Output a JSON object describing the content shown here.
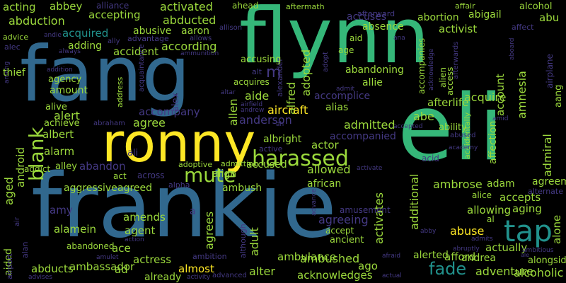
{
  "palette": {
    "yellow": "#fde725",
    "lime": "#9bd93c",
    "green": "#35b779",
    "teal": "#21918c",
    "blue": "#31688e",
    "indigo": "#443983",
    "purple": "#440154"
  },
  "words": [
    {
      "text": "flynn",
      "color": "green"
    },
    {
      "text": "fang",
      "color": "blue"
    },
    {
      "text": "frankie",
      "color": "blue"
    },
    {
      "text": "eli",
      "color": "green"
    },
    {
      "text": "ronny",
      "color": "yellow"
    },
    {
      "text": "harassed",
      "color": "lime"
    },
    {
      "text": "tap",
      "color": "teal"
    },
    {
      "text": "blank",
      "color": "lime"
    },
    {
      "text": "mute",
      "color": "lime"
    },
    {
      "text": "fade",
      "color": "teal"
    },
    {
      "text": "acting",
      "color": "lime"
    },
    {
      "text": "abbey",
      "color": "lime"
    },
    {
      "text": "alliance",
      "color": "indigo"
    },
    {
      "text": "activated",
      "color": "lime"
    },
    {
      "text": "ahead",
      "color": "lime"
    },
    {
      "text": "aftermath",
      "color": "lime"
    },
    {
      "text": "affair",
      "color": "lime"
    },
    {
      "text": "alcohol",
      "color": "lime"
    },
    {
      "text": "abduction",
      "color": "lime"
    },
    {
      "text": "accepting",
      "color": "lime"
    },
    {
      "text": "abducted",
      "color": "lime"
    },
    {
      "text": "accuses",
      "color": "indigo"
    },
    {
      "text": "afterward",
      "color": "indigo"
    },
    {
      "text": "abortion",
      "color": "lime"
    },
    {
      "text": "abigail",
      "color": "lime"
    },
    {
      "text": "abu",
      "color": "lime"
    },
    {
      "text": "advice",
      "color": "lime"
    },
    {
      "text": "andie",
      "color": "indigo"
    },
    {
      "text": "abusive",
      "color": "lime"
    },
    {
      "text": "aaron",
      "color": "lime"
    },
    {
      "text": "allison",
      "color": "indigo"
    },
    {
      "text": "absence",
      "color": "lime"
    },
    {
      "text": "activist",
      "color": "lime"
    },
    {
      "text": "affect",
      "color": "indigo"
    },
    {
      "text": "acquired",
      "color": "teal"
    },
    {
      "text": "advantage",
      "color": "indigo"
    },
    {
      "text": "allows",
      "color": "indigo"
    },
    {
      "text": "aid",
      "color": "lime"
    },
    {
      "text": "ana",
      "color": "indigo"
    },
    {
      "text": "alec",
      "color": "indigo"
    },
    {
      "text": "adding",
      "color": "lime"
    },
    {
      "text": "according",
      "color": "lime"
    },
    {
      "text": "ammunition",
      "color": "indigo"
    },
    {
      "text": "age",
      "color": "lime"
    },
    {
      "text": "always",
      "color": "indigo"
    },
    {
      "text": "accident",
      "color": "lime"
    },
    {
      "text": "afterwards",
      "color": "indigo"
    },
    {
      "text": "airplane",
      "color": "indigo"
    },
    {
      "text": "alexander",
      "color": "indigo"
    },
    {
      "text": "adopted",
      "color": "lime"
    },
    {
      "text": "alfred",
      "color": "lime"
    },
    {
      "text": "adopt",
      "color": "lime"
    },
    {
      "text": "aged",
      "color": "lime"
    },
    {
      "text": "android",
      "color": "indigo"
    },
    {
      "text": "aided",
      "color": "lime"
    },
    {
      "text": "air",
      "color": "lime"
    },
    {
      "text": "airport",
      "color": "indigo"
    },
    {
      "text": "alan",
      "color": "lime"
    },
    {
      "text": "alex",
      "color": "lime"
    },
    {
      "text": "address",
      "color": "lime"
    },
    {
      "text": "acquaintance",
      "color": "lime"
    },
    {
      "text": "affection",
      "color": "indigo"
    },
    {
      "text": "amnesia",
      "color": "indigo"
    },
    {
      "text": "admiral",
      "color": "lime"
    },
    {
      "text": "account",
      "color": "lime"
    },
    {
      "text": "aang",
      "color": "lime"
    },
    {
      "text": "aboard",
      "color": "yellow"
    },
    {
      "text": "acknowledge",
      "color": "lime"
    },
    {
      "text": "alien",
      "color": "lime"
    },
    {
      "text": "accompanies",
      "color": "lime"
    },
    {
      "text": "access",
      "color": "indigo"
    },
    {
      "text": "accidentally",
      "color": "indigo"
    },
    {
      "text": "activates",
      "color": "lime"
    },
    {
      "text": "additional",
      "color": "lime"
    },
    {
      "text": "agrees",
      "color": "lime"
    },
    {
      "text": "although",
      "color": "indigo"
    },
    {
      "text": "adult",
      "color": "lime"
    },
    {
      "text": "advance",
      "color": "lime"
    },
    {
      "text": "alone",
      "color": "indigo"
    },
    {
      "text": "allen",
      "color": "lime"
    },
    {
      "text": "among",
      "color": "indigo"
    },
    {
      "text": "accusing",
      "color": "lime"
    },
    {
      "text": "abandoning",
      "color": "indigo"
    },
    {
      "text": "thief",
      "color": "lime"
    },
    {
      "text": "addition",
      "color": "lime"
    },
    {
      "text": "agency",
      "color": "indigo"
    },
    {
      "text": "amount",
      "color": "indigo"
    },
    {
      "text": "acquires",
      "color": "lime"
    },
    {
      "text": "allie",
      "color": "lime"
    },
    {
      "text": "aide",
      "color": "lime"
    },
    {
      "text": "accomplice",
      "color": "indigo"
    },
    {
      "text": "admit",
      "color": "lime"
    },
    {
      "text": "acquire",
      "color": "lime"
    },
    {
      "text": "afterlife",
      "color": "indigo"
    },
    {
      "text": "alias",
      "color": "lime"
    },
    {
      "text": "aircraft",
      "color": "indigo"
    },
    {
      "text": "alive",
      "color": "lime"
    },
    {
      "text": "alert",
      "color": "lime"
    },
    {
      "text": "accompany",
      "color": "lime"
    },
    {
      "text": "anderson",
      "color": "indigo"
    },
    {
      "text": "abe",
      "color": "lime"
    },
    {
      "text": "achieve",
      "color": "lime"
    },
    {
      "text": "abraham",
      "color": "lime"
    },
    {
      "text": "agree",
      "color": "indigo"
    },
    {
      "text": "admitted",
      "color": "lime"
    },
    {
      "text": "accepted",
      "color": "lime"
    },
    {
      "text": "ability",
      "color": "lime"
    },
    {
      "text": "abused",
      "color": "lime"
    },
    {
      "text": "albert",
      "color": "indigo"
    },
    {
      "text": "accompanied",
      "color": "lime"
    },
    {
      "text": "albright",
      "color": "indigo"
    },
    {
      "text": "actor",
      "color": "indigo"
    },
    {
      "text": "active",
      "color": "lime"
    },
    {
      "text": "academy",
      "color": "lime"
    },
    {
      "text": "alarm",
      "color": "indigo"
    },
    {
      "text": "addict",
      "color": "lime"
    },
    {
      "text": "alley",
      "color": "lime"
    },
    {
      "text": "abandon",
      "color": "lime"
    },
    {
      "text": "accused",
      "color": "lime"
    },
    {
      "text": "allowed",
      "color": "lime"
    },
    {
      "text": "acid",
      "color": "lime"
    },
    {
      "text": "act",
      "color": "lime"
    },
    {
      "text": "across",
      "color": "indigo"
    },
    {
      "text": "adoptive",
      "color": "lime"
    },
    {
      "text": "admitting",
      "color": "lime"
    },
    {
      "text": "align",
      "color": "lime"
    },
    {
      "text": "activate",
      "color": "yellow"
    },
    {
      "text": "agreement",
      "color": "indigo"
    },
    {
      "text": "aggressive",
      "color": "indigo"
    },
    {
      "text": "agreed",
      "color": "lime"
    },
    {
      "text": "alpha",
      "color": "indigo"
    },
    {
      "text": "ambush",
      "color": "indigo"
    },
    {
      "text": "african",
      "color": "lime"
    },
    {
      "text": "ambrose",
      "color": "indigo"
    },
    {
      "text": "adam",
      "color": "lime"
    },
    {
      "text": "alternate",
      "color": "indigo"
    },
    {
      "text": "alice",
      "color": "lime"
    },
    {
      "text": "accepts",
      "color": "lime"
    },
    {
      "text": "amy",
      "color": "indigo"
    },
    {
      "text": "amends",
      "color": "indigo"
    },
    {
      "text": "amusement",
      "color": "indigo"
    },
    {
      "text": "allowing",
      "color": "indigo"
    },
    {
      "text": "aging",
      "color": "lime"
    },
    {
      "text": "agreeing",
      "color": "indigo"
    },
    {
      "text": "al",
      "color": "lime"
    },
    {
      "text": "alamein",
      "color": "lime"
    },
    {
      "text": "agent",
      "color": "lime"
    },
    {
      "text": "abuse",
      "color": "lime"
    },
    {
      "text": "accept",
      "color": "lime"
    },
    {
      "text": "abby",
      "color": "lime"
    },
    {
      "text": "admits",
      "color": "lime"
    },
    {
      "text": "ancient",
      "color": "indigo"
    },
    {
      "text": "abandoned",
      "color": "yellow"
    },
    {
      "text": "action",
      "color": "lime"
    },
    {
      "text": "ace",
      "color": "lime"
    },
    {
      "text": "actually",
      "color": "lime"
    },
    {
      "text": "abruptly",
      "color": "lime"
    },
    {
      "text": "ambitious",
      "color": "indigo"
    },
    {
      "text": "ale",
      "color": "lime"
    },
    {
      "text": "ambition",
      "color": "indigo"
    },
    {
      "text": "afford",
      "color": "lime"
    },
    {
      "text": "andrea",
      "color": "indigo"
    },
    {
      "text": "alongside",
      "color": "indigo"
    },
    {
      "text": "abducts",
      "color": "lime"
    },
    {
      "text": "ambassador",
      "color": "indigo"
    },
    {
      "text": "ad",
      "color": "lime"
    },
    {
      "text": "actress",
      "color": "lime"
    },
    {
      "text": "amulet",
      "color": "indigo"
    },
    {
      "text": "almost",
      "color": "indigo"
    },
    {
      "text": "alter",
      "color": "indigo"
    },
    {
      "text": "ambulance",
      "color": "indigo"
    },
    {
      "text": "ambushed",
      "color": "indigo"
    },
    {
      "text": "ago",
      "color": "lime"
    },
    {
      "text": "afraid",
      "color": "lime"
    },
    {
      "text": "alerted",
      "color": "lime"
    },
    {
      "text": "advises",
      "color": "lime"
    },
    {
      "text": "already",
      "color": "indigo"
    },
    {
      "text": "activity",
      "color": "lime"
    },
    {
      "text": "advanced",
      "color": "lime"
    },
    {
      "text": "acknowledges",
      "color": "lime"
    },
    {
      "text": "actual",
      "color": "lime"
    },
    {
      "text": "adventure",
      "color": "lime"
    },
    {
      "text": "alcoholic",
      "color": "lime"
    },
    {
      "text": "altar",
      "color": "indigo"
    },
    {
      "text": "airfield",
      "color": "indigo"
    },
    {
      "text": "andrew",
      "color": "indigo"
    },
    {
      "text": "ah",
      "color": "lime"
    },
    {
      "text": "amid",
      "color": "indigo"
    },
    {
      "text": "ally",
      "color": "indigo"
    },
    {
      "text": "m",
      "color": "indigo"
    },
    {
      "text": "a",
      "color": "indigo"
    },
    {
      "text": "ali",
      "color": "indigo"
    },
    {
      "text": "alt",
      "color": "indigo"
    }
  ]
}
